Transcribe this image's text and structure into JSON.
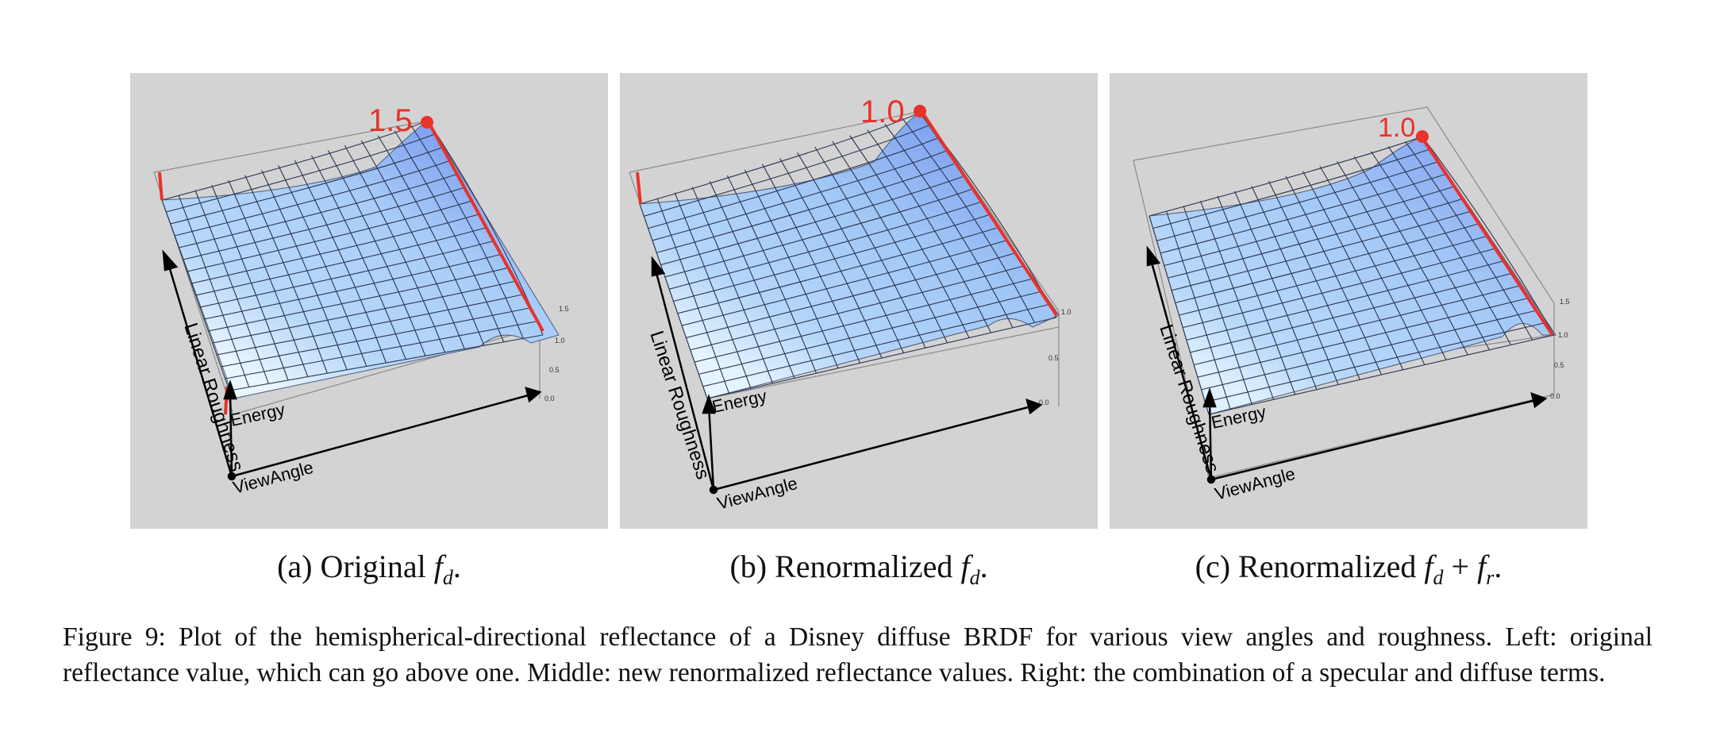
{
  "figure": {
    "caption": "Figure 9: Plot of the hemispherical-directional reflectance of a Disney diffuse BRDF for various view angles and roughness. Left: original reflectance value, which can go above one. Middle: new renormalized reflectance values. Right: the combination of a specular and diffuse terms."
  },
  "panels": [
    {
      "id": "a",
      "subcaption_prefix": "(a) Original ",
      "subcaption_math": "f",
      "subcaption_sub": "d",
      "subcaption_suffix": ".",
      "peak_label": "1.5",
      "axis_labels": {
        "roughness": "Linear Roughness",
        "energy": "Energy",
        "view_angle": "ViewAngle"
      },
      "tick_labels": [
        "1.5",
        "1.0",
        "0.5",
        "0.0"
      ],
      "colors": {
        "surface_top": "#5f7fe8",
        "surface_mid": "#a9cdf8",
        "surface_light": "#eaf6ff",
        "highlight": "#e8322a"
      }
    },
    {
      "id": "b",
      "subcaption_prefix": "(b) Renormalized ",
      "subcaption_math": "f",
      "subcaption_sub": "d",
      "subcaption_suffix": ".",
      "peak_label": "1.0",
      "axis_labels": {
        "roughness": "Linear Roughness",
        "energy": "Energy",
        "view_angle": "ViewAngle"
      },
      "tick_labels": [
        "1.0",
        "0.5",
        "0.0"
      ],
      "colors": {
        "surface_top": "#6a88ea",
        "surface_mid": "#9fc6f6",
        "surface_light": "#e6f4ff",
        "highlight": "#e8322a"
      }
    },
    {
      "id": "c",
      "subcaption_prefix": "(c) Renormalized ",
      "subcaption_math": "f",
      "subcaption_sub": "d",
      "subcaption_suffix": " + ",
      "subcaption_math2": "f",
      "subcaption_sub2": "r",
      "subcaption_suffix2": ".",
      "peak_label": "1.0",
      "axis_labels": {
        "roughness": "Linear Roughness",
        "energy": "Energy",
        "view_angle": "ViewAngle"
      },
      "tick_labels": [
        "1.5",
        "1.0",
        "0.5",
        "0.0"
      ],
      "colors": {
        "surface_top": "#7894ec",
        "surface_mid": "#a4c9f7",
        "surface_light": "#dff0ff",
        "highlight": "#e8322a"
      }
    }
  ]
}
